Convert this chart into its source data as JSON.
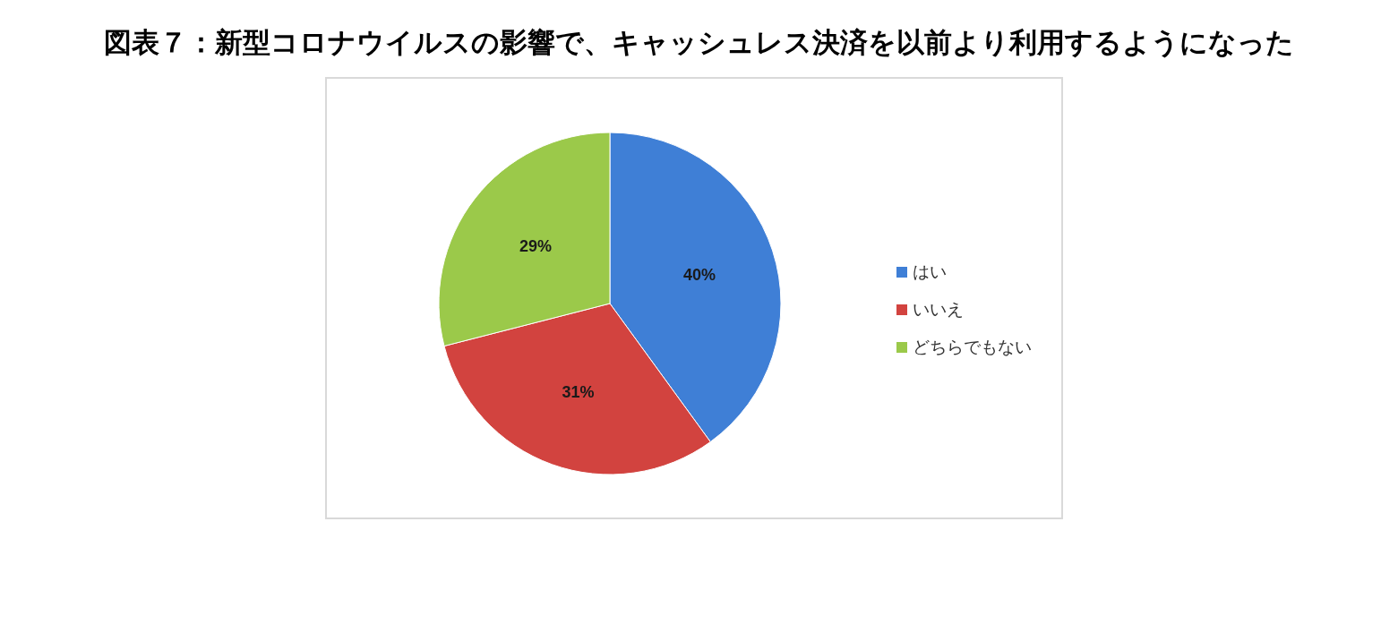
{
  "chart_data": {
    "type": "pie",
    "title": "図表７：新型コロナウイルスの影響で、キャッシュレス決済を以前より利用するようになった",
    "categories": [
      "はい",
      "いいえ",
      "どちらでもない"
    ],
    "values": [
      40,
      31,
      29
    ],
    "colors": [
      "#3f7fd6",
      "#d2433f",
      "#9bc94a"
    ],
    "value_labels": [
      "40%",
      "31%",
      "29%"
    ],
    "legend": "right"
  }
}
